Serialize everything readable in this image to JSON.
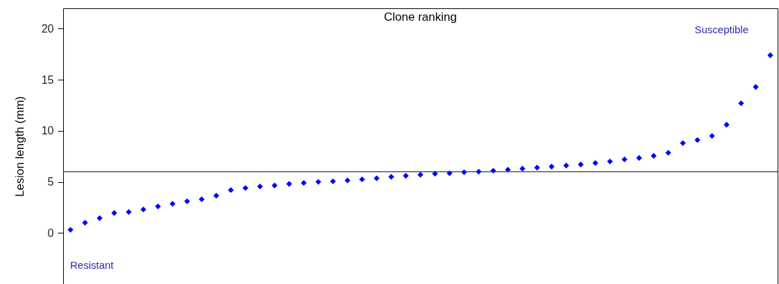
{
  "chart_data": {
    "type": "scatter",
    "title": "Clone ranking",
    "ylabel": "Lesion length (mm)",
    "categories": [
      null,
      null,
      null,
      null,
      null,
      null,
      null,
      null,
      null,
      null,
      null,
      null,
      null,
      null,
      null,
      null,
      null,
      null,
      null,
      null,
      null,
      null,
      null,
      null,
      null,
      null,
      null,
      null,
      null,
      null,
      null,
      null,
      null,
      null,
      null,
      null,
      null,
      null,
      null,
      null,
      null,
      null,
      null,
      null,
      null,
      null,
      null,
      null,
      null
    ],
    "series": [
      {
        "color": "#0000ff",
        "values": [
          0.3,
          1.0,
          1.45,
          1.95,
          2.05,
          2.3,
          2.6,
          2.85,
          3.1,
          3.3,
          3.65,
          4.2,
          4.4,
          4.55,
          4.65,
          4.8,
          4.9,
          5.0,
          5.05,
          5.15,
          5.25,
          5.35,
          5.5,
          5.6,
          5.7,
          5.8,
          5.85,
          5.95,
          6.0,
          6.1,
          6.2,
          6.3,
          6.4,
          6.5,
          6.6,
          6.7,
          6.85,
          7.0,
          7.2,
          7.35,
          7.55,
          7.85,
          8.8,
          9.1,
          9.5,
          10.6,
          12.7,
          14.3,
          17.4
        ]
      }
    ],
    "ylim": [
      -5,
      22
    ],
    "yticks": [
      0,
      5,
      10,
      15,
      20
    ],
    "tick_labels": "y",
    "marker": "diamond",
    "ref_lines": [
      {
        "axis": "y",
        "value": 6,
        "color": "#333333"
      }
    ],
    "annotations": [
      "Resistant",
      "Susceptible"
    ]
  }
}
